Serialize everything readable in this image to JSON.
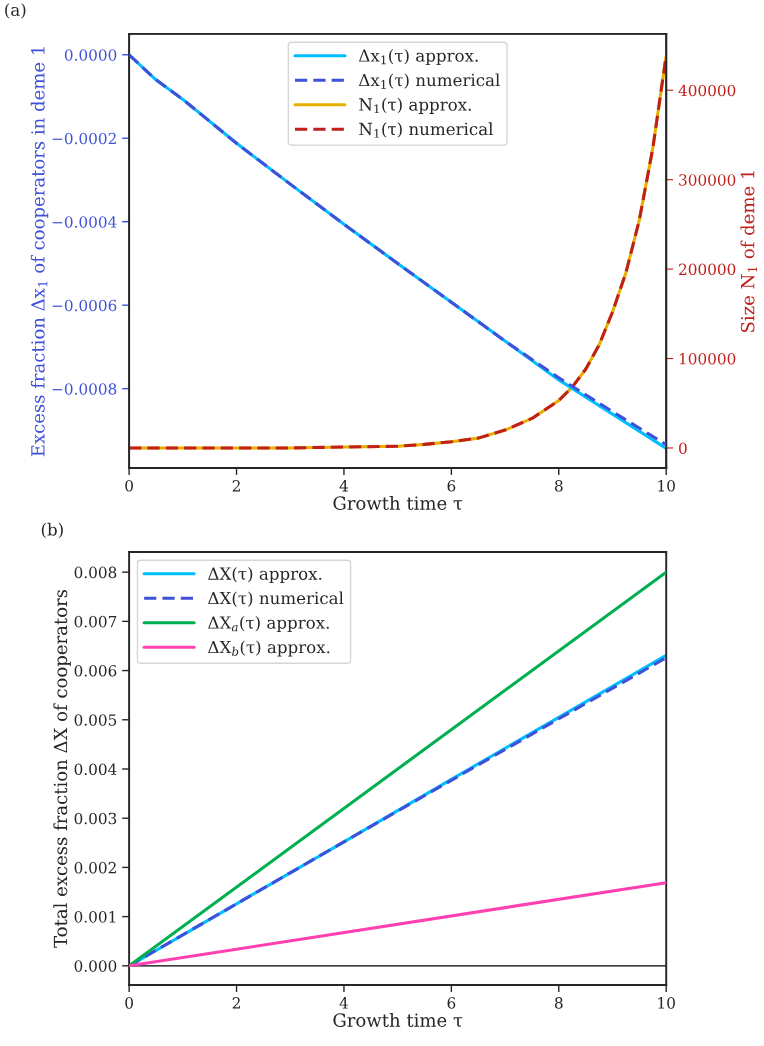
{
  "chart_data": [
    {
      "type": "line",
      "xlabel": "Growth time τ",
      "ylabel": "Excess fraction Δx$_{1}$ of cooperators in deme 1",
      "y2label": "Size N$_{1}$ of deme 1",
      "annotations": [
        "(a)"
      ],
      "xlim": [
        0,
        10
      ],
      "xticks": [
        0,
        2,
        4,
        6,
        8,
        10
      ],
      "ylim": [
        -0.00099,
        5e-05
      ],
      "yticks": [
        {
          "value": -0.0008,
          "label": "−0.0008"
        },
        {
          "value": -0.0006,
          "label": "−0.0006"
        },
        {
          "value": -0.0004,
          "label": "−0.0004"
        },
        {
          "value": -0.0002,
          "label": "−0.0002"
        },
        {
          "value": 0,
          "label": "0.0000"
        }
      ],
      "y2lim": [
        -22400,
        463000
      ],
      "y2ticks": [
        0,
        100000,
        200000,
        300000,
        400000
      ],
      "grid": false,
      "legend": "top",
      "marker": "none",
      "series": [
        {
          "name": "Δx$_{1}$(τ) approx.",
          "color": "#00bfff",
          "line_style": "solid",
          "x": [
            0,
            0.5,
            1,
            2,
            3,
            4,
            5,
            6,
            7,
            8,
            9,
            10
          ],
          "values": [
            0,
            -6e-05,
            -0.000107,
            -0.000212,
            -0.00031,
            -0.000406,
            -0.0005,
            -0.000593,
            -0.000686,
            -0.000779,
            -0.000861,
            -0.000943
          ]
        },
        {
          "name": "Δx$_{1}$(τ) numerical",
          "color": "#3f51d9",
          "line_style": "dashed",
          "x": [
            0,
            0.5,
            1,
            2,
            3,
            4,
            5,
            6,
            7,
            8,
            9,
            10
          ],
          "values": [
            0,
            -6e-05,
            -0.000107,
            -0.000212,
            -0.00031,
            -0.000406,
            -0.0005,
            -0.000593,
            -0.000686,
            -0.000774,
            -0.000855,
            -0.000934
          ]
        },
        {
          "name": "N$_{1}$(τ) approx.",
          "color": "#e6b000",
          "line_style": "solid",
          "axis": "y2",
          "x": [
            0,
            1,
            2,
            3,
            4,
            5,
            5.5,
            6,
            6.5,
            7,
            7.5,
            8,
            8.25,
            8.5,
            8.75,
            9,
            9.25,
            9.5,
            9.75,
            10
          ],
          "values": [
            0,
            0,
            0,
            0,
            1000,
            2000,
            4000,
            7000,
            11000,
            20000,
            33000,
            53000,
            68000,
            88000,
            115000,
            152000,
            196000,
            255000,
            335000,
            439000
          ]
        },
        {
          "name": "N$_{1}$(τ) numerical",
          "color": "#c0201a",
          "line_style": "dashed",
          "axis": "y2",
          "x": [
            0,
            1,
            2,
            3,
            4,
            5,
            5.5,
            6,
            6.5,
            7,
            7.5,
            8,
            8.25,
            8.5,
            8.75,
            9,
            9.25,
            9.5,
            9.75,
            10
          ],
          "values": [
            0,
            0,
            0,
            0,
            1000,
            2000,
            4000,
            7000,
            11000,
            20000,
            33000,
            53000,
            68000,
            88000,
            115000,
            152000,
            196000,
            255000,
            335000,
            439000
          ]
        }
      ]
    },
    {
      "type": "line",
      "xlabel": "Growth time τ",
      "ylabel": "Total excess fraction ΔX of cooperators",
      "annotations": [
        "(b)"
      ],
      "xlim": [
        0,
        10
      ],
      "xticks": [
        0,
        2,
        4,
        6,
        8,
        10
      ],
      "ylim": [
        -0.00039,
        0.00841
      ],
      "yticks": [
        {
          "value": 0,
          "label": "0.000"
        },
        {
          "value": 0.001,
          "label": "0.001"
        },
        {
          "value": 0.002,
          "label": "0.002"
        },
        {
          "value": 0.003,
          "label": "0.003"
        },
        {
          "value": 0.004,
          "label": "0.004"
        },
        {
          "value": 0.005,
          "label": "0.005"
        },
        {
          "value": 0.006,
          "label": "0.006"
        },
        {
          "value": 0.007,
          "label": "0.007"
        },
        {
          "value": 0.008,
          "label": "0.008"
        }
      ],
      "ref_lines": [
        {
          "axis": "y",
          "value": 0,
          "color": "#000000",
          "line_style": "solid"
        }
      ],
      "grid": false,
      "legend": "top left",
      "marker": "none",
      "series": [
        {
          "name": "ΔX(τ) approx.",
          "color": "#00bfff",
          "line_style": "solid",
          "x": [
            0,
            2,
            4,
            6,
            8,
            10
          ],
          "values": [
            0,
            0.00126,
            0.00252,
            0.00379,
            0.00505,
            0.00631
          ]
        },
        {
          "name": "ΔX(τ) numerical",
          "color": "#3f51d9",
          "line_style": "dashed",
          "x": [
            0,
            2,
            4,
            6,
            8,
            10
          ],
          "values": [
            0,
            0.00126,
            0.00252,
            0.00377,
            0.00502,
            0.00626
          ]
        },
        {
          "name": "ΔX$_{a}$(τ) approx.",
          "color": "#00b050",
          "line_style": "solid",
          "x": [
            0,
            10
          ],
          "values": [
            0,
            0.008
          ]
        },
        {
          "name": "ΔX$_{b}$(τ) approx.",
          "color": "#ff40b0",
          "line_style": "solid",
          "x": [
            0,
            10
          ],
          "values": [
            0,
            0.00169
          ]
        }
      ]
    }
  ]
}
